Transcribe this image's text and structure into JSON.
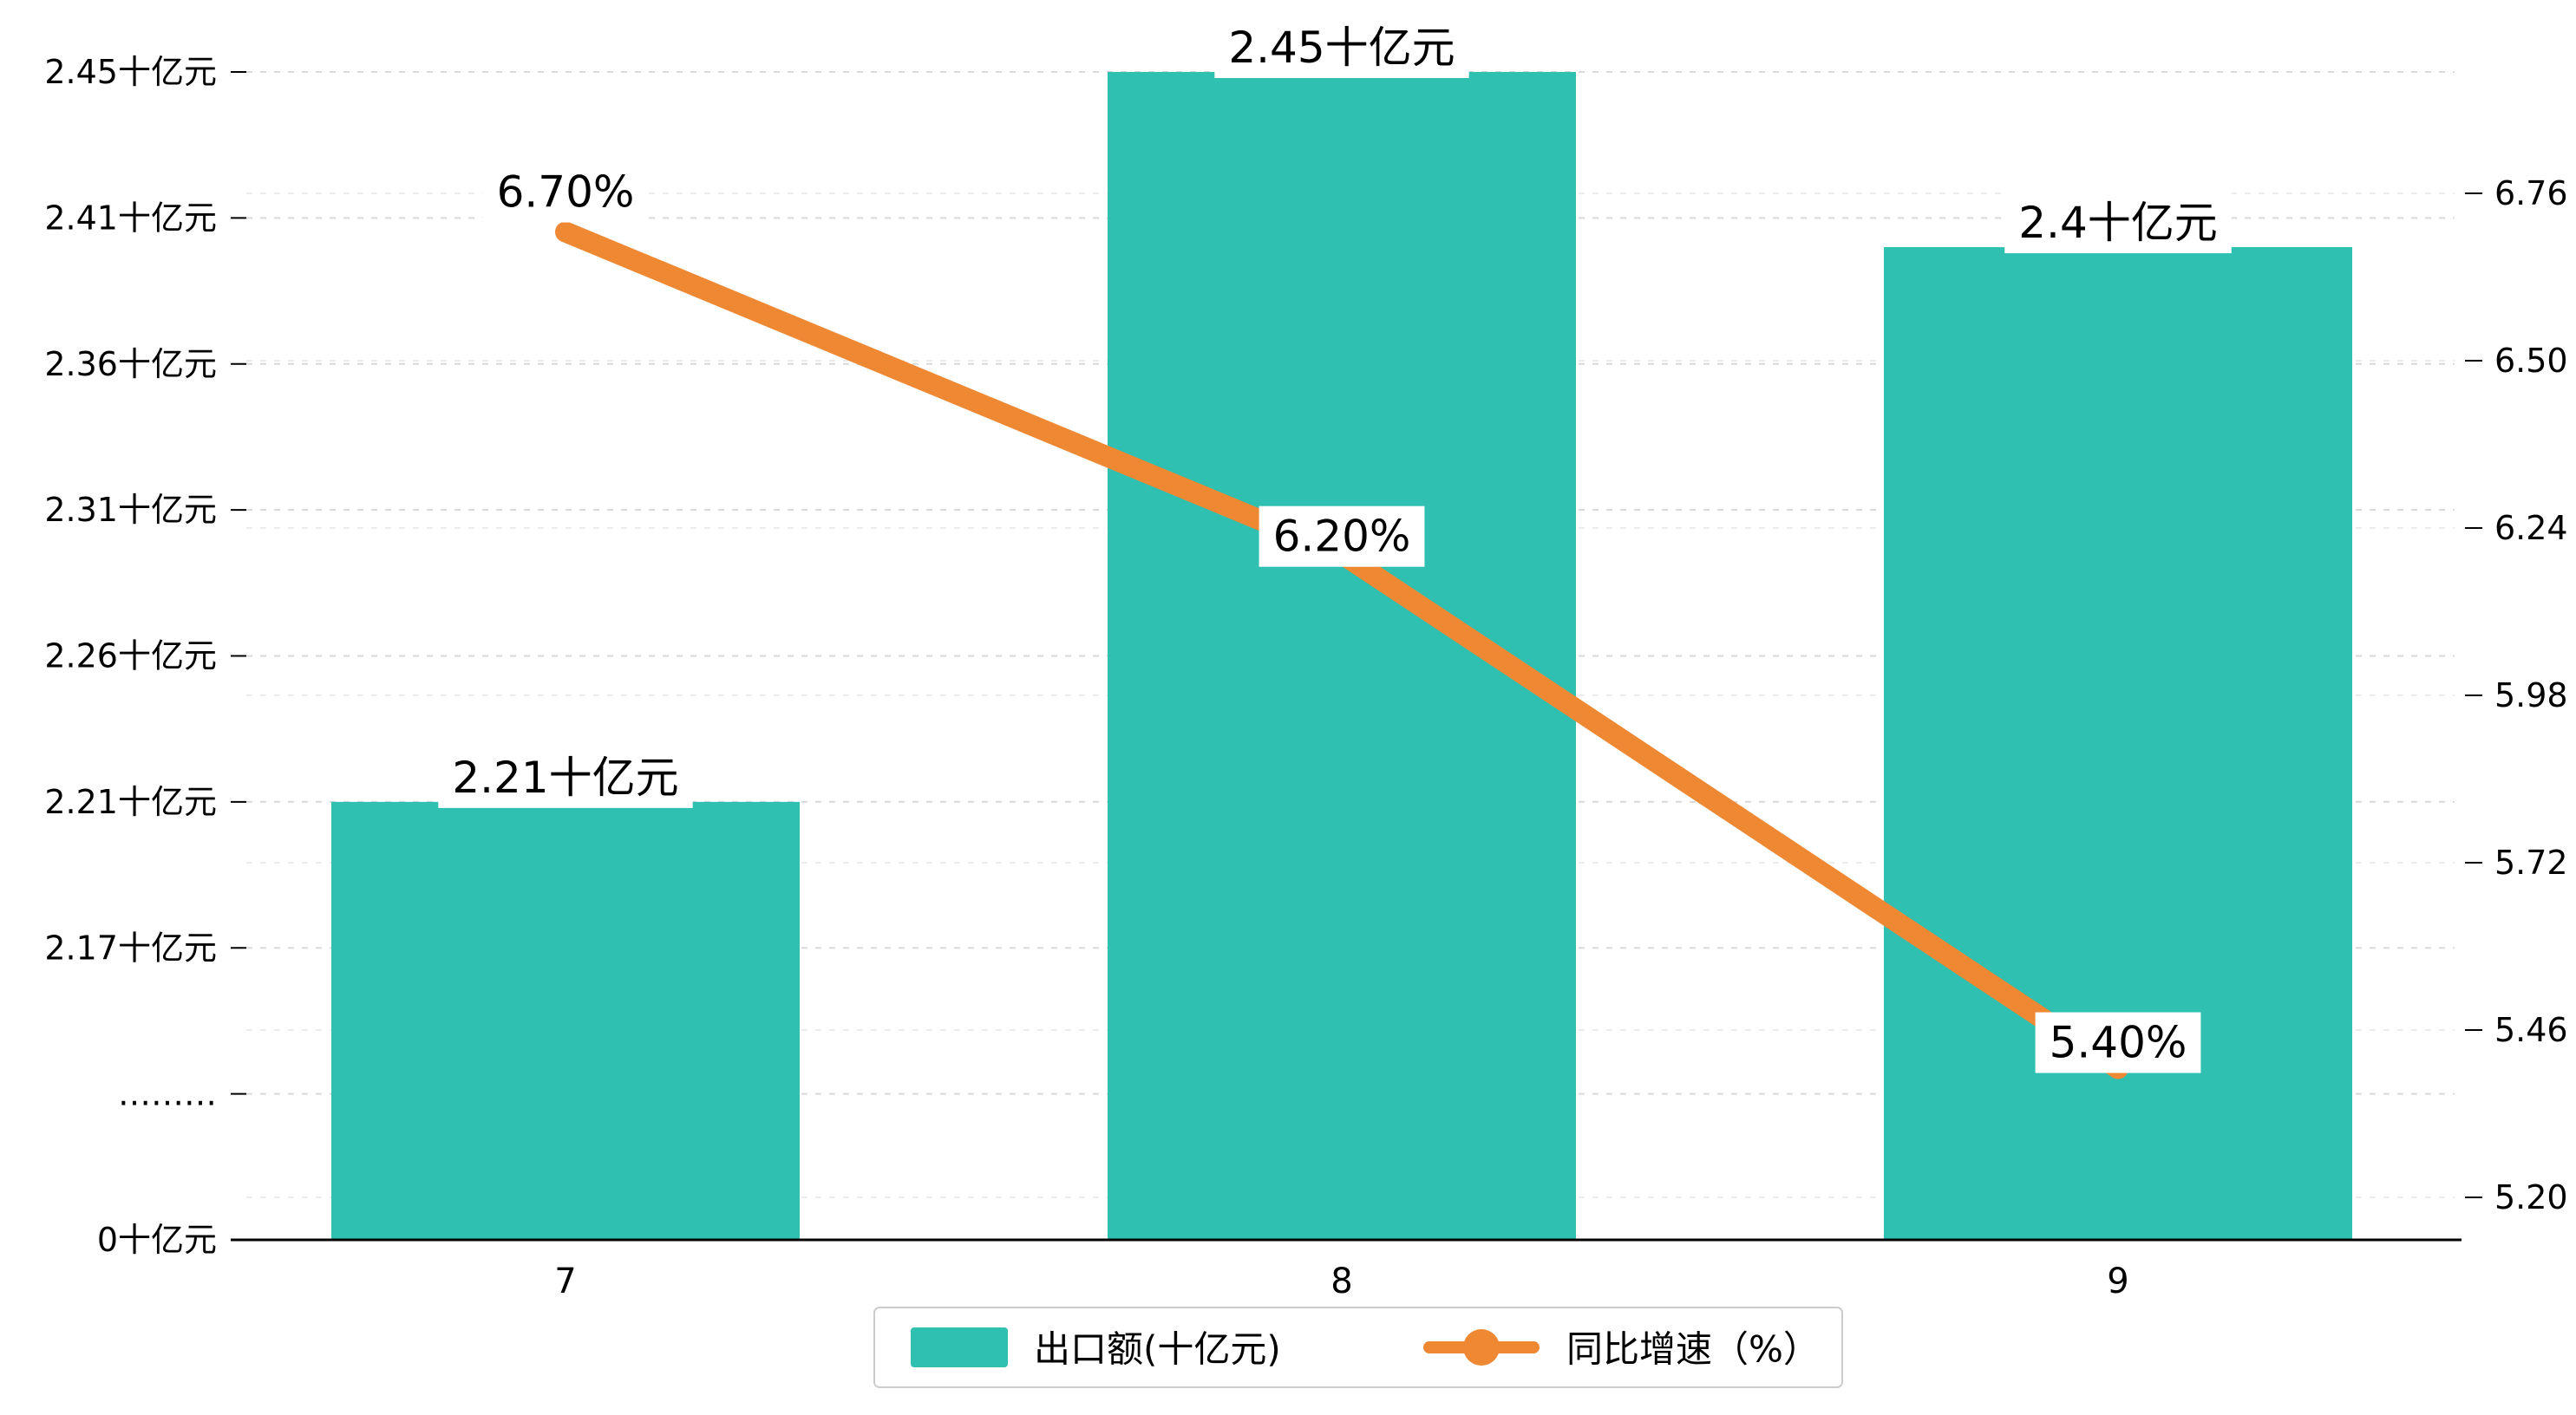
{
  "chart_data": {
    "type": "bar+line",
    "categories": [
      "7",
      "8",
      "9"
    ],
    "series": [
      {
        "name": "出口额(十亿元)",
        "type": "bar",
        "axis": "left",
        "color": "#2fc0b2",
        "values": [
          2.21,
          2.45,
          2.4
        ],
        "data_labels": [
          "2.21十亿元",
          "2.45十亿元",
          "2.4十亿元"
        ]
      },
      {
        "name": "同比增速（%）",
        "type": "line",
        "axis": "right",
        "color": "#ee8833",
        "values": [
          6.7,
          6.2,
          5.4
        ],
        "data_labels": [
          "6.70%",
          "6.20%",
          "5.40%"
        ]
      }
    ],
    "left_axis": {
      "tick_labels": [
        "2.45十亿元",
        "2.41十亿元",
        "2.36十亿元",
        "2.31十亿元",
        "2.26十亿元",
        "2.21十亿元",
        "2.17十亿元",
        "………",
        "0十亿元"
      ],
      "tick_values": [
        2.45,
        2.41,
        2.36,
        2.31,
        2.26,
        2.21,
        2.17,
        null,
        0
      ],
      "axis_break": true
    },
    "right_axis": {
      "tick_labels": [
        "6.76",
        "6.50",
        "6.24",
        "5.98",
        "5.72",
        "5.46",
        "5.20"
      ],
      "max": 6.76,
      "min": 5.2
    },
    "legend": {
      "position": "bottom",
      "items": [
        {
          "label": "出口额(十亿元)",
          "marker": "bar"
        },
        {
          "label": "同比增速（%）",
          "marker": "line"
        }
      ]
    },
    "grid": true,
    "title": "",
    "xlabel": "",
    "ylabel_left": "十亿元",
    "ylabel_right": "%"
  },
  "colors": {
    "bar": "#2fc0b2",
    "line": "#ee8833",
    "grid_left": "#d9d9d9",
    "grid_right": "#ececec",
    "axis": "#000000",
    "text": "#000000",
    "label_bg": "#ffffff",
    "legend_border": "#cccccc",
    "background": "#ffffff"
  }
}
